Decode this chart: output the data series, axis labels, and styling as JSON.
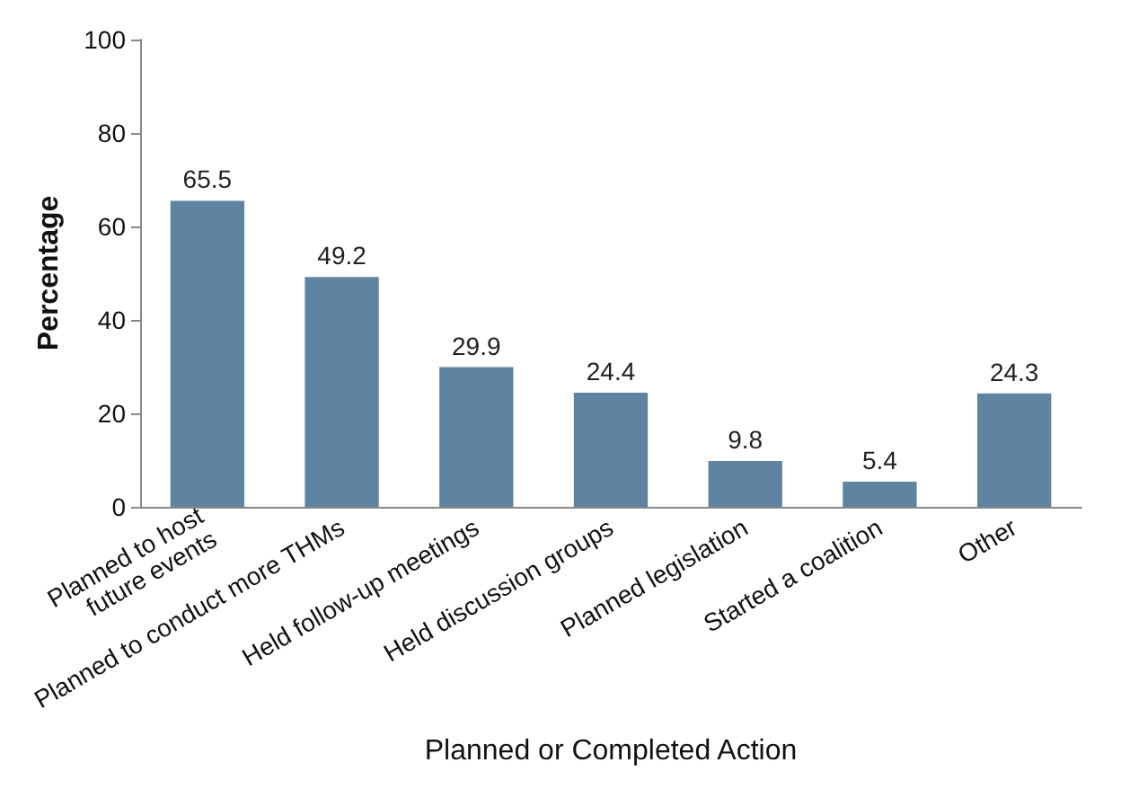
{
  "chart_data": {
    "type": "bar",
    "xlabel": "Planned or Completed Action",
    "ylabel": "Percentage",
    "categories": [
      "Planned to host\nfuture events",
      "Planned to conduct more THMs",
      "Held follow-up meetings",
      "Held discussion groups",
      "Planned legislation",
      "Started a coalition",
      "Other"
    ],
    "values": [
      65.5,
      49.2,
      29.9,
      24.4,
      9.8,
      5.4,
      24.3
    ],
    "color": "#5f84a2",
    "ylim": [
      0,
      100
    ],
    "yticks": [
      0,
      20,
      40,
      60,
      80,
      100
    ],
    "grid": false,
    "data_labels": true
  }
}
